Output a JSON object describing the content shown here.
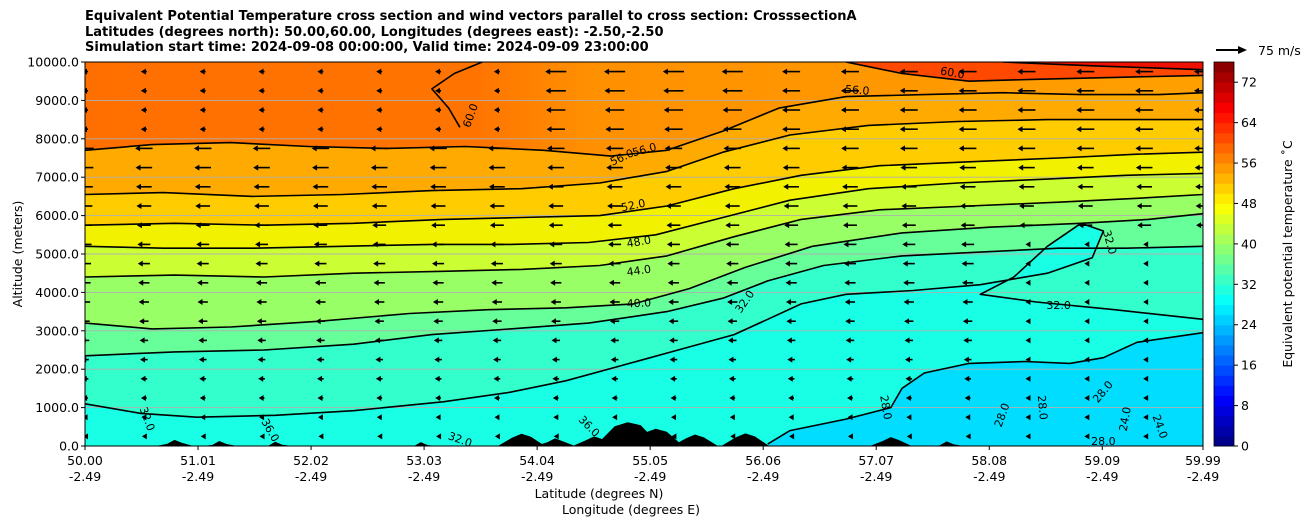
{
  "chart_data": {
    "type": "contour",
    "title_lines": [
      "Equivalent Potential Temperature cross section and wind vectors parallel to cross section: CrosssectionA",
      "Latitudes (degrees north): 50.00,60.00, Longitudes (degrees east): -2.50,-2.50",
      "Simulation start time: 2024-09-08 00:00:00, Valid time: 2024-09-09 23:00:00"
    ],
    "xlabel_lines": [
      "Latitude (degrees N)",
      "Longitude (degrees E)"
    ],
    "ylabel": "Altitude (meters)",
    "x_ticks": [
      {
        "lat": "50.00",
        "lon": "-2.49"
      },
      {
        "lat": "51.01",
        "lon": "-2.49"
      },
      {
        "lat": "52.02",
        "lon": "-2.49"
      },
      {
        "lat": "53.03",
        "lon": "-2.49"
      },
      {
        "lat": "54.04",
        "lon": "-2.49"
      },
      {
        "lat": "55.05",
        "lon": "-2.49"
      },
      {
        "lat": "56.06",
        "lon": "-2.49"
      },
      {
        "lat": "57.07",
        "lon": "-2.49"
      },
      {
        "lat": "58.08",
        "lon": "-2.49"
      },
      {
        "lat": "59.09",
        "lon": "-2.49"
      },
      {
        "lat": "59.99",
        "lon": "-2.49"
      }
    ],
    "y_ticks": [
      "0.0",
      "1000.0",
      "2000.0",
      "3000.0",
      "4000.0",
      "5000.0",
      "6000.0",
      "7000.0",
      "8000.0",
      "9000.0",
      "10000.0"
    ],
    "ylim": [
      0,
      10000
    ],
    "xlim": [
      50.0,
      59.99
    ],
    "grid": "horizontal",
    "colorbar": {
      "label": "Equivalent potential temperature ˚C",
      "range": [
        0,
        76
      ],
      "ticks": [
        "0",
        "8",
        "16",
        "24",
        "32",
        "40",
        "48",
        "56",
        "64",
        "72"
      ],
      "colormap": "jet"
    },
    "quiver_key": {
      "label": "75 m/s"
    },
    "contour_levels": [
      "24.0",
      "28.0",
      "32.0",
      "36.0",
      "40.0",
      "44.0",
      "48.0",
      "52.0",
      "56.0",
      "60.0"
    ],
    "contour_lines": [
      {
        "level": "32.0",
        "points": [
          [
            50.0,
            1100
          ],
          [
            50.5,
            850
          ],
          [
            51.0,
            750
          ],
          [
            51.7,
            800
          ],
          [
            52.4,
            920
          ],
          [
            53.2,
            1150
          ],
          [
            53.8,
            1400
          ],
          [
            54.3,
            1700
          ],
          [
            54.8,
            2100
          ],
          [
            55.3,
            2500
          ],
          [
            55.8,
            2900
          ],
          [
            56.1,
            3300
          ],
          [
            56.4,
            3700
          ],
          [
            56.8,
            3950
          ],
          [
            57.4,
            4050
          ],
          [
            58.0,
            4200
          ],
          [
            58.6,
            4500
          ],
          [
            59.0,
            4900
          ],
          [
            59.1,
            5600
          ],
          [
            58.9,
            5800
          ],
          [
            58.6,
            5200
          ],
          [
            58.3,
            4400
          ],
          [
            58.0,
            3950
          ],
          [
            58.5,
            3750
          ],
          [
            59.2,
            3550
          ],
          [
            59.99,
            3300
          ]
        ]
      },
      {
        "level": "36.0",
        "points": [
          [
            50.0,
            2350
          ],
          [
            50.8,
            2450
          ],
          [
            51.6,
            2500
          ],
          [
            52.4,
            2650
          ],
          [
            53.1,
            2900
          ],
          [
            53.8,
            3050
          ],
          [
            54.5,
            3200
          ],
          [
            55.2,
            3500
          ],
          [
            55.7,
            3850
          ],
          [
            56.1,
            4300
          ],
          [
            56.6,
            4700
          ],
          [
            57.3,
            4950
          ],
          [
            58.0,
            5050
          ],
          [
            58.7,
            5150
          ],
          [
            59.3,
            5150
          ],
          [
            59.99,
            5200
          ]
        ]
      },
      {
        "level": "40.0",
        "points": [
          [
            50.0,
            3200
          ],
          [
            50.6,
            3050
          ],
          [
            51.3,
            3100
          ],
          [
            52.1,
            3250
          ],
          [
            52.9,
            3450
          ],
          [
            53.6,
            3550
          ],
          [
            54.3,
            3600
          ],
          [
            54.9,
            3700
          ],
          [
            55.4,
            4100
          ],
          [
            55.9,
            4650
          ],
          [
            56.5,
            5200
          ],
          [
            57.3,
            5550
          ],
          [
            58.1,
            5700
          ],
          [
            58.9,
            5800
          ],
          [
            59.5,
            5900
          ],
          [
            59.99,
            6050
          ]
        ]
      },
      {
        "level": "44.0",
        "points": [
          [
            50.0,
            4400
          ],
          [
            50.8,
            4450
          ],
          [
            51.6,
            4400
          ],
          [
            52.4,
            4500
          ],
          [
            53.2,
            4550
          ],
          [
            53.9,
            4600
          ],
          [
            54.6,
            4700
          ],
          [
            55.2,
            4950
          ],
          [
            55.8,
            5450
          ],
          [
            56.4,
            5900
          ],
          [
            57.1,
            6150
          ],
          [
            57.9,
            6250
          ],
          [
            58.7,
            6350
          ],
          [
            59.4,
            6450
          ],
          [
            59.99,
            6550
          ]
        ]
      },
      {
        "level": "48.0",
        "points": [
          [
            50.0,
            5200
          ],
          [
            50.7,
            5150
          ],
          [
            51.5,
            5150
          ],
          [
            52.3,
            5200
          ],
          [
            53.1,
            5250
          ],
          [
            53.8,
            5250
          ],
          [
            54.5,
            5300
          ],
          [
            55.1,
            5500
          ],
          [
            55.7,
            5950
          ],
          [
            56.3,
            6400
          ],
          [
            57.0,
            6700
          ],
          [
            57.8,
            6850
          ],
          [
            58.6,
            6950
          ],
          [
            59.3,
            7050
          ],
          [
            59.99,
            7100
          ]
        ]
      },
      {
        "level": "52.0",
        "points": [
          [
            50.0,
            5750
          ],
          [
            50.8,
            5800
          ],
          [
            51.6,
            5750
          ],
          [
            52.4,
            5800
          ],
          [
            53.2,
            5900
          ],
          [
            53.9,
            5950
          ],
          [
            54.6,
            6000
          ],
          [
            55.2,
            6250
          ],
          [
            55.8,
            6700
          ],
          [
            56.4,
            7050
          ],
          [
            57.1,
            7300
          ],
          [
            57.9,
            7400
          ],
          [
            58.7,
            7500
          ],
          [
            59.4,
            7600
          ],
          [
            59.99,
            7650
          ]
        ]
      },
      {
        "level": "56.0",
        "points": [
          [
            50.0,
            6550
          ],
          [
            50.7,
            6600
          ],
          [
            51.5,
            6500
          ],
          [
            52.3,
            6550
          ],
          [
            53.1,
            6650
          ],
          [
            53.9,
            6700
          ],
          [
            54.6,
            6850
          ],
          [
            55.2,
            7150
          ],
          [
            55.7,
            7650
          ],
          [
            56.3,
            8100
          ],
          [
            57.0,
            8350
          ],
          [
            57.8,
            8450
          ],
          [
            58.6,
            8500
          ],
          [
            59.3,
            8500
          ],
          [
            59.99,
            8500
          ]
        ]
      },
      {
        "level": "56.0",
        "points": [
          [
            50.0,
            7700
          ],
          [
            50.6,
            7850
          ],
          [
            51.3,
            7900
          ],
          [
            52.0,
            7800
          ],
          [
            52.7,
            7750
          ],
          [
            53.4,
            7800
          ],
          [
            54.1,
            7700
          ],
          [
            54.7,
            7550
          ],
          [
            55.2,
            7700
          ],
          [
            55.7,
            8200
          ],
          [
            56.2,
            8800
          ],
          [
            56.8,
            9100
          ],
          [
            57.5,
            9150
          ],
          [
            58.2,
            9200
          ],
          [
            58.9,
            9150
          ],
          [
            59.6,
            9150
          ],
          [
            59.99,
            9200
          ]
        ]
      },
      {
        "level": "60.0",
        "points": [
          [
            53.35,
            8300
          ],
          [
            53.25,
            8800
          ],
          [
            53.1,
            9300
          ],
          [
            53.3,
            9700
          ],
          [
            53.55,
            10000
          ]
        ]
      },
      {
        "level": "60.0",
        "points": [
          [
            56.8,
            10000
          ],
          [
            57.3,
            9700
          ],
          [
            57.9,
            9500
          ],
          [
            58.5,
            9550
          ],
          [
            59.2,
            9600
          ],
          [
            59.99,
            9650
          ]
        ]
      },
      {
        "level": "64.0",
        "points": [
          [
            58.2,
            10000
          ],
          [
            59.0,
            9900
          ],
          [
            59.99,
            9800
          ]
        ]
      },
      {
        "level": "28.0",
        "points": [
          [
            56.1,
            50
          ],
          [
            56.3,
            400
          ],
          [
            56.8,
            700
          ],
          [
            57.2,
            1000
          ],
          [
            57.3,
            1500
          ],
          [
            57.5,
            1900
          ],
          [
            57.9,
            2150
          ],
          [
            58.4,
            2200
          ],
          [
            58.8,
            2150
          ],
          [
            59.1,
            2300
          ],
          [
            59.4,
            2700
          ],
          [
            59.99,
            2950
          ]
        ]
      }
    ],
    "contour_label_marks": [
      {
        "text": "60.0",
        "lat": 53.45,
        "alt": 8600,
        "rot": -70
      },
      {
        "text": "60.0",
        "lat": 57.75,
        "alt": 9700,
        "rot": 10
      },
      {
        "text": "56.0",
        "lat": 56.9,
        "alt": 9250,
        "rot": 5
      },
      {
        "text": "56.0",
        "lat": 54.8,
        "alt": 7500,
        "rot": -25
      },
      {
        "text": "56.0",
        "lat": 55.0,
        "alt": 7700,
        "rot": -15
      },
      {
        "text": "52.0",
        "lat": 54.9,
        "alt": 6250,
        "rot": -12
      },
      {
        "text": "48.0",
        "lat": 54.95,
        "alt": 5300,
        "rot": -10
      },
      {
        "text": "44.0",
        "lat": 54.95,
        "alt": 4550,
        "rot": -8
      },
      {
        "text": "40.0",
        "lat": 54.95,
        "alt": 3700,
        "rot": -3
      },
      {
        "text": "32.0",
        "lat": 55.9,
        "alt": 3750,
        "rot": -55
      },
      {
        "text": "32.0",
        "lat": 58.7,
        "alt": 3650,
        "rot": 0
      },
      {
        "text": "32.0",
        "lat": 59.15,
        "alt": 5300,
        "rot": 75
      },
      {
        "text": "32.0",
        "lat": 50.55,
        "alt": 700,
        "rot": 70
      },
      {
        "text": "36.0",
        "lat": 51.65,
        "alt": 400,
        "rot": 60
      },
      {
        "text": "32.0",
        "lat": 53.35,
        "alt": 150,
        "rot": 20
      },
      {
        "text": "36.0",
        "lat": 54.5,
        "alt": 500,
        "rot": 45
      },
      {
        "text": "28.0",
        "lat": 57.15,
        "alt": 1000,
        "rot": 80
      },
      {
        "text": "28.0",
        "lat": 58.2,
        "alt": 800,
        "rot": -70
      },
      {
        "text": "28.0",
        "lat": 58.55,
        "alt": 1000,
        "rot": 85
      },
      {
        "text": "28.0",
        "lat": 59.1,
        "alt": 1400,
        "rot": -50
      },
      {
        "text": "24.0",
        "lat": 59.3,
        "alt": 700,
        "rot": -80
      },
      {
        "text": "24.0",
        "lat": 59.6,
        "alt": 500,
        "rot": 70
      },
      {
        "text": "28.0",
        "lat": 59.1,
        "alt": 100,
        "rot": 0
      }
    ],
    "terrain_peaks": [
      {
        "lat": 50.8,
        "alt": 160
      },
      {
        "lat": 51.2,
        "alt": 130
      },
      {
        "lat": 51.7,
        "alt": 110
      },
      {
        "lat": 53.0,
        "alt": 100
      },
      {
        "lat": 53.9,
        "alt": 320
      },
      {
        "lat": 54.2,
        "alt": 200
      },
      {
        "lat": 54.55,
        "alt": 250
      },
      {
        "lat": 54.85,
        "alt": 620
      },
      {
        "lat": 55.1,
        "alt": 450
      },
      {
        "lat": 55.45,
        "alt": 300
      },
      {
        "lat": 55.9,
        "alt": 330
      },
      {
        "lat": 57.2,
        "alt": 230
      },
      {
        "lat": 57.7,
        "alt": 120
      }
    ]
  }
}
